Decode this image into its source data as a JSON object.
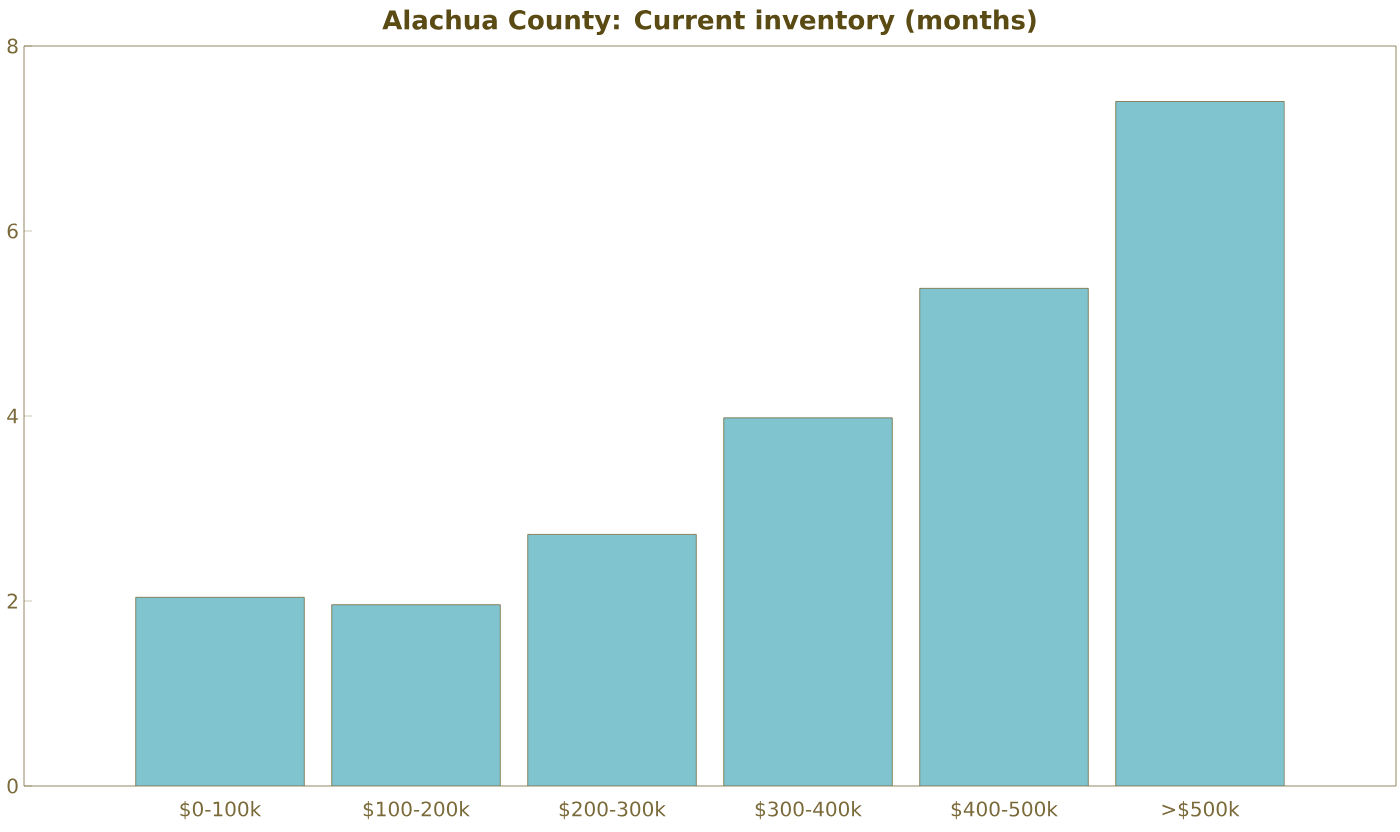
{
  "chart_data": {
    "type": "bar",
    "title": "Alachua County: Current inventory (months)",
    "categories": [
      "$0-100k",
      "$100-200k",
      "$200-300k",
      "$300-400k",
      "$400-500k",
      ">$500k"
    ],
    "values": [
      2.04,
      1.96,
      2.72,
      3.98,
      5.38,
      7.4
    ],
    "color": "#7fc4cf",
    "ylim": [
      0,
      8
    ],
    "yticks": [
      0,
      2,
      4,
      6,
      8
    ]
  }
}
